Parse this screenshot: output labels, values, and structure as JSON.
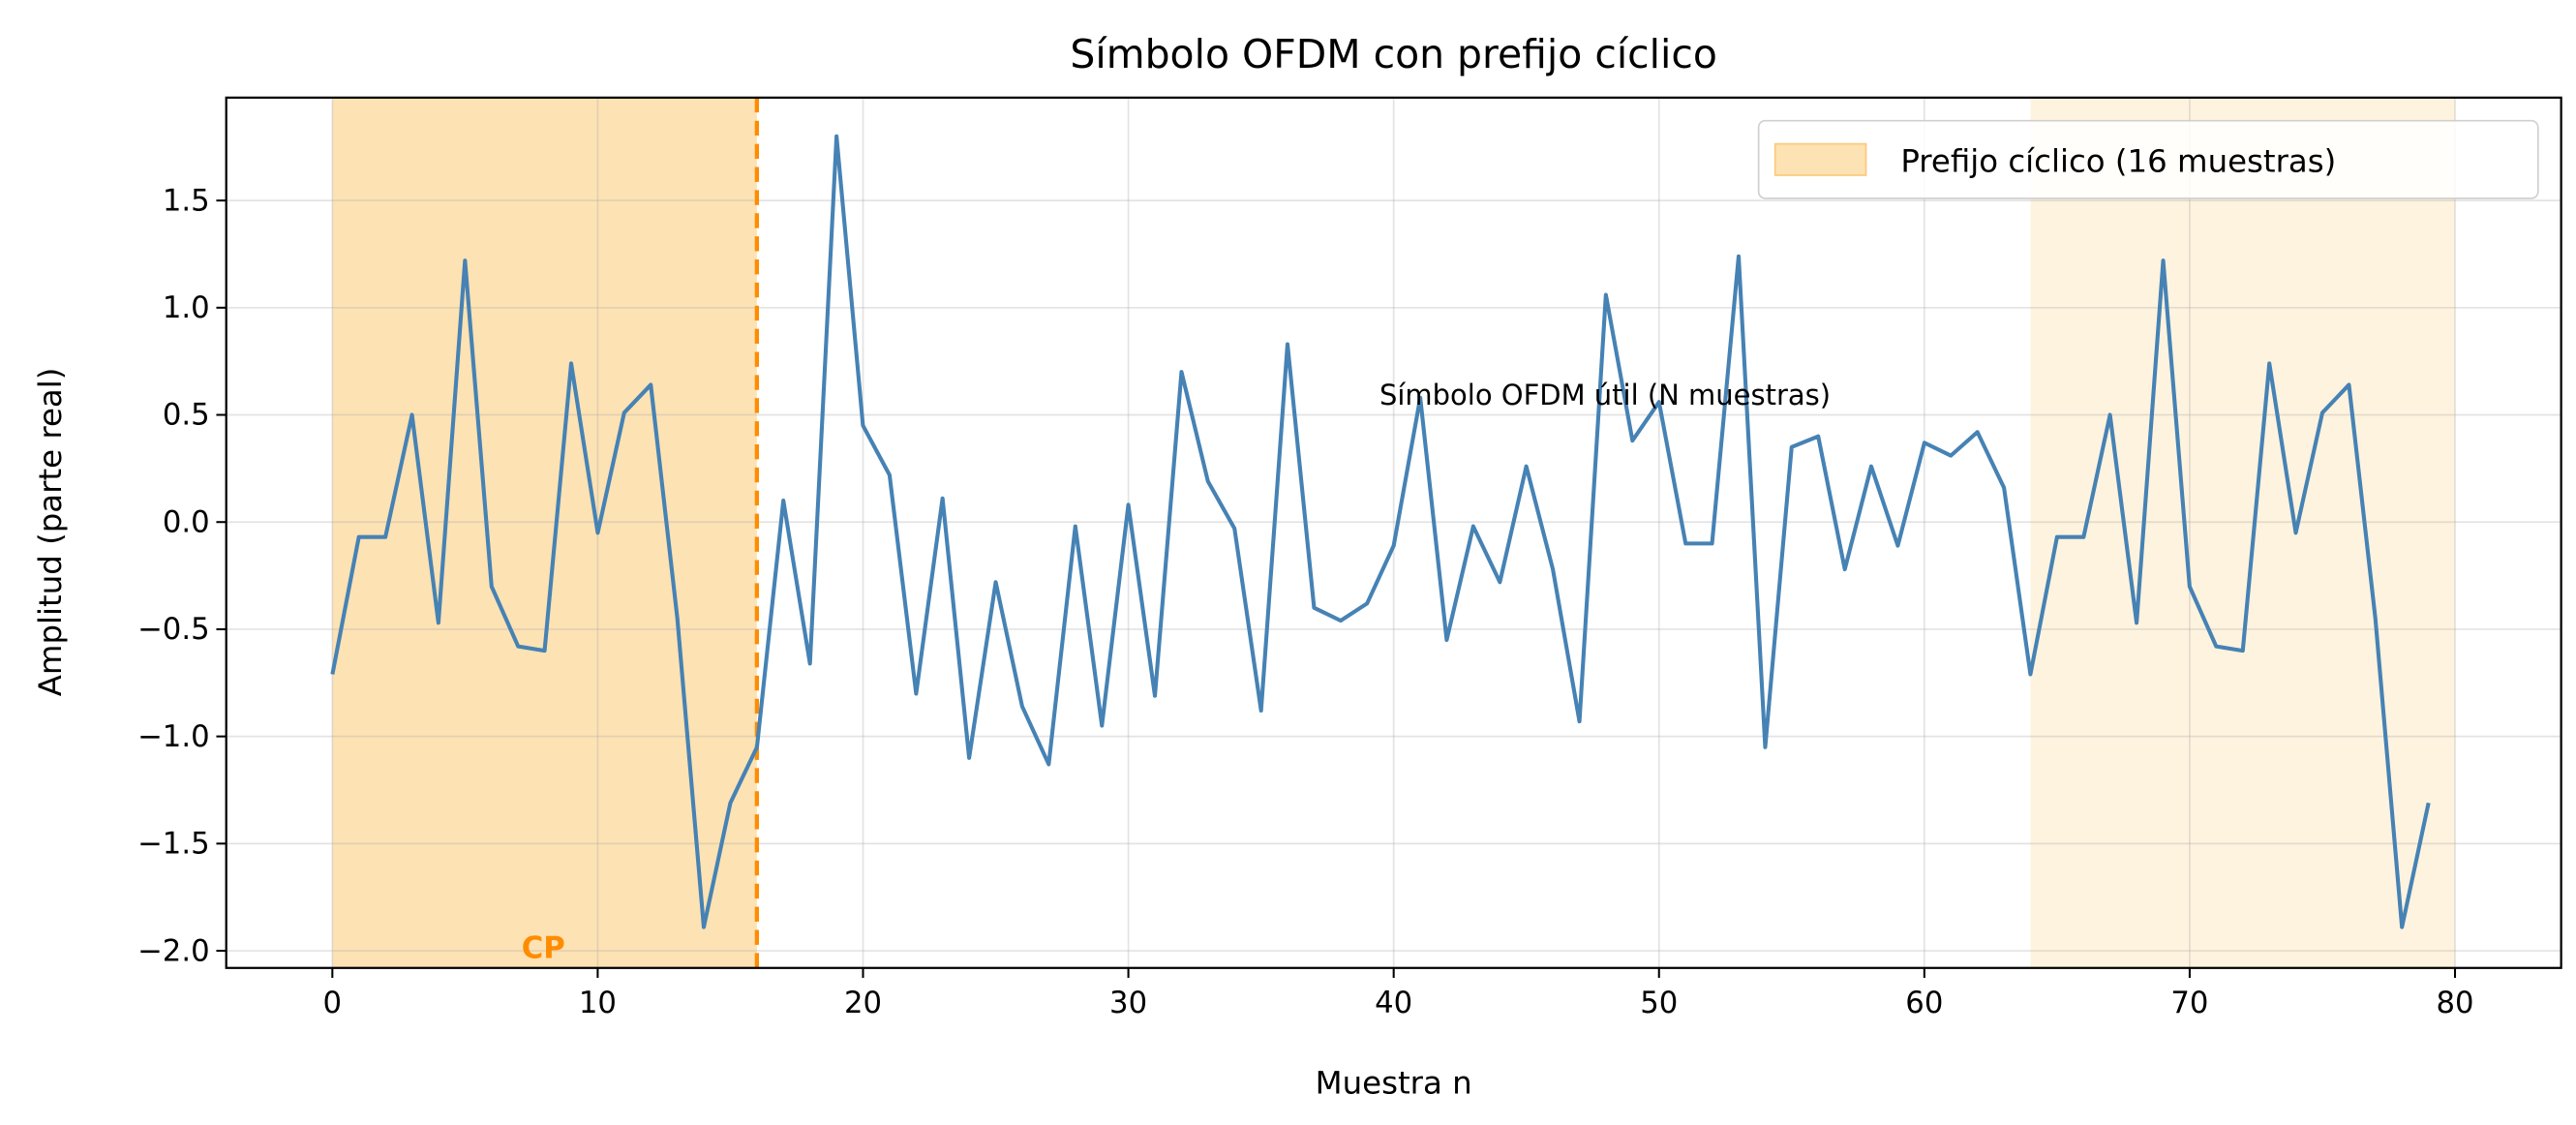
{
  "chart_data": {
    "type": "line",
    "title": "Símbolo OFDM con prefijo cíclico",
    "xlabel": "Muestra n",
    "ylabel": "Amplitud (parte real)",
    "xlim": [
      -4,
      84
    ],
    "ylim": [
      -2.08,
      1.98
    ],
    "grid": true,
    "legend_position": "top-right",
    "xticks": [
      0,
      10,
      20,
      30,
      40,
      50,
      60,
      70,
      80
    ],
    "xtick_labels": [
      "0",
      "10",
      "20",
      "30",
      "40",
      "50",
      "60",
      "70",
      "80"
    ],
    "yticks": [
      -2.0,
      -1.5,
      -1.0,
      -0.5,
      0.0,
      0.5,
      1.0,
      1.5
    ],
    "ytick_labels": [
      "−2.0",
      "−1.5",
      "−1.0",
      "−0.5",
      "0.0",
      "0.5",
      "1.0",
      "1.5"
    ],
    "series": [
      {
        "color": "#4682b4",
        "x": [
          0,
          1,
          2,
          3,
          4,
          5,
          6,
          7,
          8,
          9,
          10,
          11,
          12,
          13,
          14,
          15,
          16,
          17,
          18,
          19,
          20,
          21,
          22,
          23,
          24,
          25,
          26,
          27,
          28,
          29,
          30,
          31,
          32,
          33,
          34,
          35,
          36,
          37,
          38,
          39,
          40,
          41,
          42,
          43,
          44,
          45,
          46,
          47,
          48,
          49,
          50,
          51,
          52,
          53,
          54,
          55,
          56,
          57,
          58,
          59,
          60,
          61,
          62,
          63,
          64,
          65,
          66,
          67,
          68,
          69,
          70,
          71,
          72,
          73,
          74,
          75,
          76,
          77,
          78,
          79
        ],
        "y": [
          -0.71,
          -0.07,
          -0.07,
          0.5,
          -0.47,
          1.22,
          -0.3,
          -0.58,
          -0.6,
          0.74,
          -0.05,
          0.51,
          0.64,
          -0.45,
          -1.89,
          -1.31,
          -1.05,
          0.1,
          -0.66,
          1.8,
          0.45,
          0.22,
          -0.8,
          0.11,
          -1.1,
          -0.28,
          -0.86,
          -1.13,
          -0.02,
          -0.95,
          0.08,
          -0.81,
          0.7,
          0.19,
          -0.03,
          -0.88,
          0.83,
          -0.4,
          -0.46,
          -0.38,
          -0.11,
          0.58,
          -0.55,
          -0.02,
          -0.28,
          0.26,
          -0.22,
          -0.93,
          1.06,
          0.38,
          0.56,
          -0.1,
          -0.1,
          1.24,
          -1.05,
          0.35,
          0.4,
          -0.22,
          0.26,
          -0.11,
          0.37,
          0.31,
          0.42,
          0.16,
          -0.71,
          -0.07,
          -0.07,
          0.5,
          -0.47,
          1.22,
          -0.3,
          -0.58,
          -0.6,
          0.74,
          -0.05,
          0.51,
          0.64,
          -0.45,
          -1.89,
          -1.31
        ]
      }
    ],
    "shaded_regions": [
      {
        "x_range": [
          0,
          16
        ],
        "color": "#fde2b3",
        "legend": "Prefijo cíclico (16 muestras)"
      },
      {
        "x_range": [
          64,
          80
        ],
        "color": "#fef3de"
      }
    ],
    "vline": {
      "x": 16,
      "color": "#ff8c00",
      "style": "dashed"
    },
    "annotations": [
      {
        "text": "CP",
        "x": 8,
        "y": -2.0,
        "color": "#ff8c00"
      },
      {
        "text": "Símbolo OFDM útil (N muestras)",
        "x": 40,
        "y": 0.6,
        "color": "#000000"
      }
    ]
  }
}
